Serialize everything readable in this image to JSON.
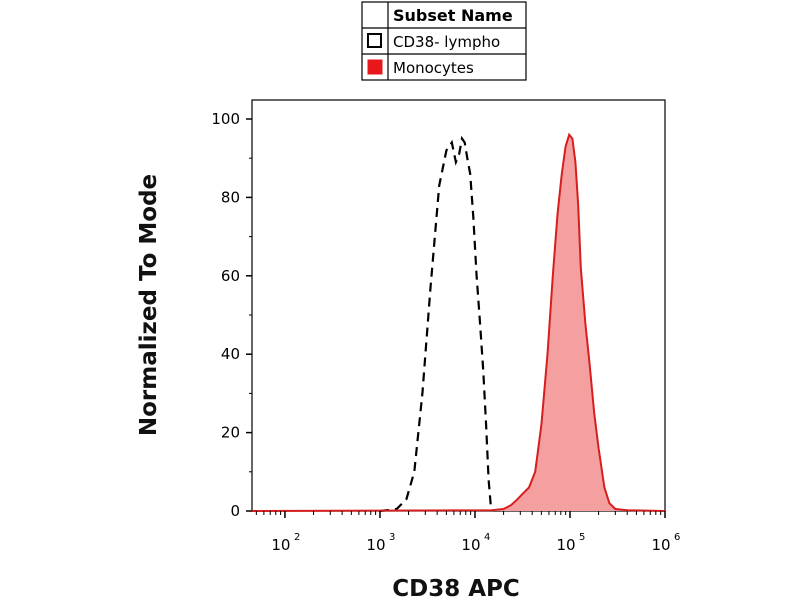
{
  "chart_data": {
    "type": "histogram",
    "xscale": "log",
    "xlim": [
      45,
      1000000
    ],
    "ylim": [
      0,
      100
    ],
    "xlabel": "CD38 APC",
    "ylabel": "Normalized To Mode",
    "yticks": [
      "0",
      "20",
      "40",
      "60",
      "80",
      "100"
    ],
    "xticks": [
      {
        "value": 100,
        "base": "10",
        "exp": "2"
      },
      {
        "value": 1000,
        "base": "10",
        "exp": "3"
      },
      {
        "value": 10000,
        "base": "10",
        "exp": "4"
      },
      {
        "value": 100000,
        "base": "10",
        "exp": "5"
      },
      {
        "value": 1000000,
        "base": "10",
        "exp": "6"
      }
    ],
    "legend": {
      "header": "Subset Name",
      "placement": "top-center-above-plot",
      "entries": [
        {
          "label": "CD38- lympho",
          "swatch": "open-square"
        },
        {
          "label": "Monocytes",
          "swatch": "filled-square"
        }
      ]
    },
    "series": [
      {
        "name": "CD38- lympho",
        "style": "dashed-line",
        "color": "#000000",
        "x": [
          1000,
          1500,
          1900,
          2300,
          2800,
          3400,
          4200,
          5000,
          5700,
          6300,
          6800,
          7300,
          7800,
          8300,
          8900,
          9600,
          10400,
          11300,
          12200,
          13100,
          13900,
          14700,
          15600
        ],
        "y": [
          0,
          0.5,
          3,
          10,
          30,
          57,
          83,
          92,
          94,
          89,
          91,
          95,
          94,
          90,
          86,
          75,
          60,
          48,
          36,
          22,
          8,
          1,
          0
        ]
      },
      {
        "name": "Monocytes",
        "style": "filled-area",
        "color": "#d71e1e",
        "fill": "#f4a0a0",
        "x": [
          45,
          15000,
          20000,
          24000,
          28000,
          32000,
          37000,
          43000,
          50000,
          58000,
          66000,
          74000,
          82000,
          90000,
          98000,
          106000,
          114000,
          122000,
          130000,
          145000,
          160000,
          180000,
          200000,
          230000,
          260000,
          300000,
          400000,
          1000000
        ],
        "y": [
          0,
          0.2,
          0.5,
          1.5,
          3,
          4.5,
          6,
          10,
          22,
          40,
          60,
          76,
          86,
          93,
          96,
          95,
          89,
          78,
          62,
          48,
          38,
          25,
          16,
          6,
          2,
          0.5,
          0.2,
          0
        ]
      }
    ]
  }
}
